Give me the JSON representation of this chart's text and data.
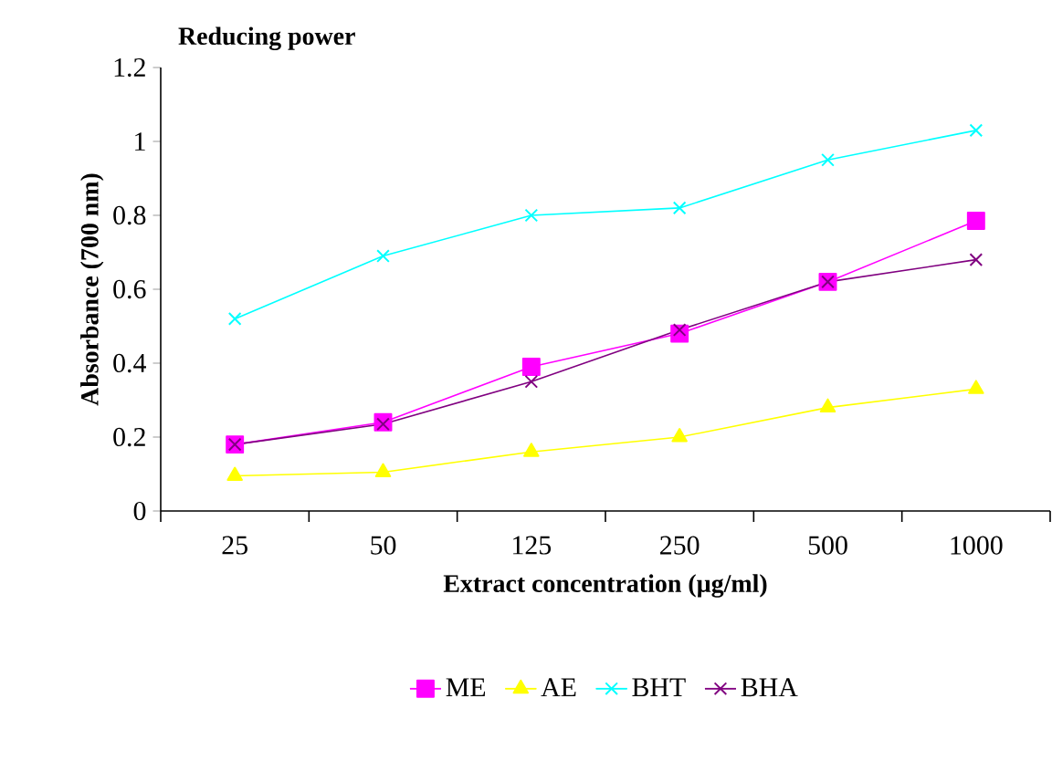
{
  "chart_data": {
    "type": "line",
    "title": "Reducing power",
    "xlabel": "Extract concentration (µg/ml)",
    "ylabel": "Absorbance (700 nm)",
    "categories": [
      "25",
      "50",
      "125",
      "250",
      "500",
      "1000"
    ],
    "ylim": [
      0,
      1.2
    ],
    "yticks": [
      0,
      0.2,
      0.4,
      0.6,
      0.8,
      1,
      1.2
    ],
    "legend": "bottom",
    "grid": false,
    "series": [
      {
        "name": "ME",
        "color": "#ff00ff",
        "marker": "square",
        "values": [
          0.18,
          0.24,
          0.39,
          0.48,
          0.62,
          0.785
        ]
      },
      {
        "name": "AE",
        "color": "#ffff00",
        "marker": "triangle",
        "values": [
          0.095,
          0.105,
          0.16,
          0.2,
          0.28,
          0.33
        ]
      },
      {
        "name": "BHT",
        "color": "#00ffff",
        "marker": "cross",
        "values": [
          0.52,
          0.69,
          0.8,
          0.82,
          0.95,
          1.03
        ]
      },
      {
        "name": "BHA",
        "color": "#800080",
        "marker": "cross",
        "values": [
          0.18,
          0.235,
          0.35,
          0.49,
          0.62,
          0.68
        ]
      }
    ]
  }
}
